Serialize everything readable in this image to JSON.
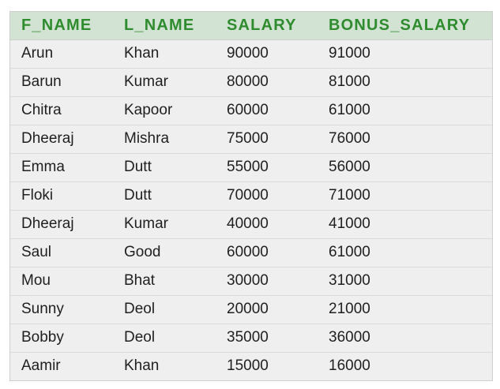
{
  "table": {
    "headers": [
      "F_NAME",
      "L_NAME",
      "SALARY",
      "BONUS_SALARY"
    ],
    "rows": [
      [
        "Arun",
        "Khan",
        "90000",
        "91000"
      ],
      [
        "Barun",
        "Kumar",
        "80000",
        "81000"
      ],
      [
        "Chitra",
        "Kapoor",
        "60000",
        "61000"
      ],
      [
        "Dheeraj",
        "Mishra",
        "75000",
        "76000"
      ],
      [
        "Emma",
        "Dutt",
        "55000",
        "56000"
      ],
      [
        "Floki",
        "Dutt",
        "70000",
        "71000"
      ],
      [
        "Dheeraj",
        "Kumar",
        "40000",
        "41000"
      ],
      [
        "Saul",
        "Good",
        "60000",
        "61000"
      ],
      [
        "Mou",
        "Bhat",
        "30000",
        "31000"
      ],
      [
        "Sunny",
        "Deol",
        "20000",
        "21000"
      ],
      [
        "Bobby",
        "Deol",
        "35000",
        "36000"
      ],
      [
        "Aamir",
        "Khan",
        "15000",
        "16000"
      ]
    ]
  },
  "colors": {
    "header_background": "#d3e3d3",
    "header_text": "#2e8b2e",
    "row_background": "#efefef",
    "cell_text": "#1f1f1f"
  }
}
